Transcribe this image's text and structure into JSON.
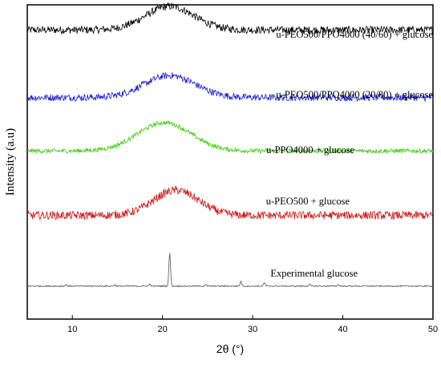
{
  "chart_data": {
    "type": "line",
    "title": "",
    "xlabel": "2θ (°)",
    "ylabel": "Intensity (a.u)",
    "xlim": [
      5,
      50
    ],
    "xticks": [
      10,
      20,
      30,
      40,
      50
    ],
    "xtick_labels": [
      "10",
      "20",
      "30",
      "40",
      "50"
    ],
    "yticks": [],
    "grid": false,
    "legend": "none",
    "series": [
      {
        "name": "u-PEO500/PPO4000 (40/60) + glucose",
        "color": "#000000",
        "baseline": 0.92,
        "noise": 0.012,
        "humps": [
          {
            "center": 20.8,
            "height": 0.075,
            "width": 3.8
          }
        ]
      },
      {
        "name": "u-PEO500/PPO4000 (20/80) + glucose",
        "color": "#1a1acc",
        "baseline": 0.705,
        "noise": 0.011,
        "humps": [
          {
            "center": 20.8,
            "height": 0.07,
            "width": 4.0
          }
        ]
      },
      {
        "name": "u-PPO4000 + glucose",
        "color": "#33cc00",
        "baseline": 0.535,
        "noise": 0.007,
        "humps": [
          {
            "center": 20.2,
            "height": 0.09,
            "width": 4.2
          }
        ]
      },
      {
        "name": "u-PEO500 + glucose",
        "color": "#cc1111",
        "baseline": 0.33,
        "noise": 0.013,
        "humps": [
          {
            "center": 21.5,
            "height": 0.08,
            "width": 3.5
          }
        ]
      },
      {
        "name": "Experimental glucose",
        "color": "#666666",
        "baseline": 0.105,
        "noise": 0.002,
        "peaks": [
          {
            "x": 20.8,
            "height": 0.105
          },
          {
            "x": 28.7,
            "height": 0.015
          },
          {
            "x": 31.3,
            "height": 0.01
          },
          {
            "x": 9.3,
            "height": 0.004
          },
          {
            "x": 14.7,
            "height": 0.004
          },
          {
            "x": 18.6,
            "height": 0.006
          },
          {
            "x": 24.8,
            "height": 0.005
          },
          {
            "x": 36.3,
            "height": 0.005
          },
          {
            "x": 39.5,
            "height": 0.004
          }
        ]
      }
    ]
  }
}
